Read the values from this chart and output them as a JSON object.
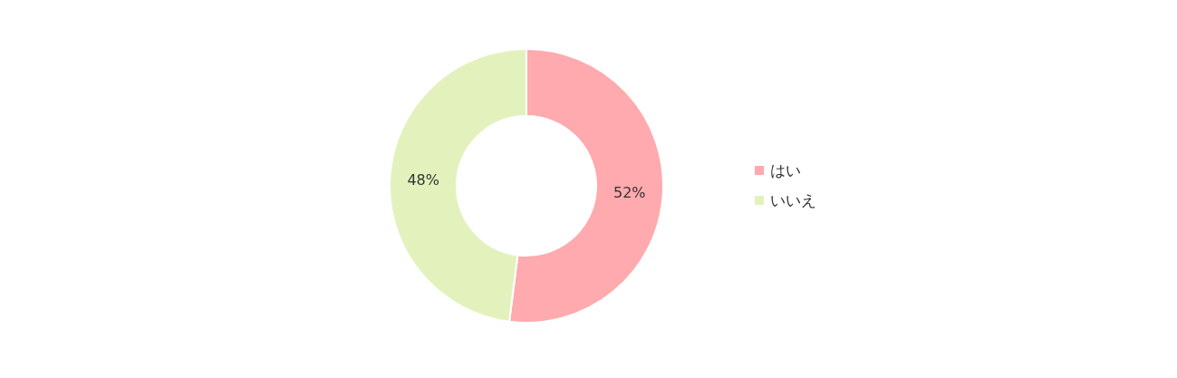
{
  "chart_data": {
    "type": "donut",
    "categories": [
      "はい",
      "いいえ"
    ],
    "values": [
      52,
      48
    ],
    "colors": [
      "#ffaaae",
      "#e3f2bd"
    ],
    "value_labels": [
      "52%",
      "48%"
    ],
    "legend": "right"
  }
}
